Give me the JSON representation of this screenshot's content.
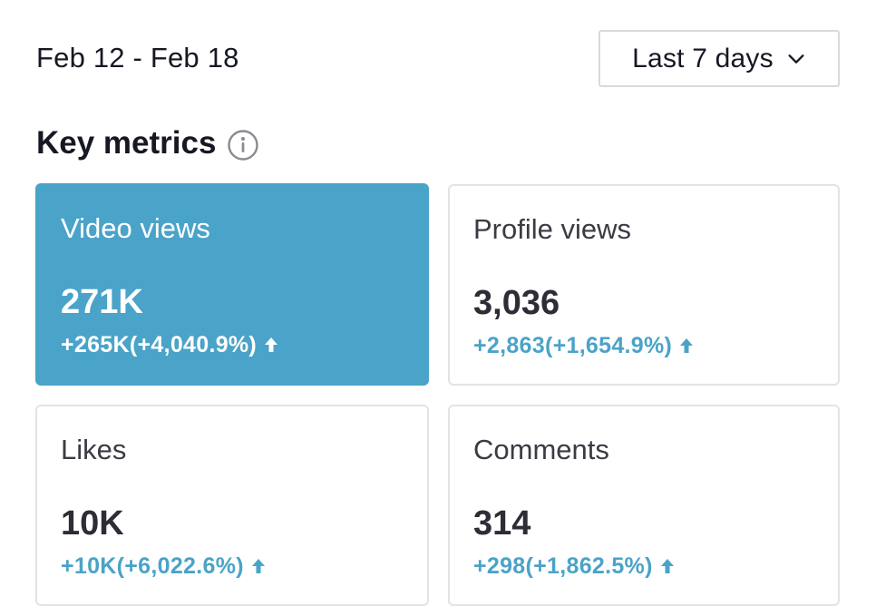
{
  "header": {
    "date_range": "Feb 12 - Feb 18",
    "range_select": {
      "value": "Last 7 days",
      "icon": "chevron-down-icon"
    }
  },
  "section": {
    "title": "Key metrics",
    "info_icon": "info-icon"
  },
  "metrics": [
    {
      "label": "Video views",
      "value": "271K",
      "change": "+265K(+4,040.9%)",
      "trend": "up",
      "selected": true
    },
    {
      "label": "Profile views",
      "value": "3,036",
      "change": "+2,863(+1,654.9%)",
      "trend": "up",
      "selected": false
    },
    {
      "label": "Likes",
      "value": "10K",
      "change": "+10K(+6,022.6%)",
      "trend": "up",
      "selected": false
    },
    {
      "label": "Comments",
      "value": "314",
      "change": "+298(+1,862.5%)",
      "trend": "up",
      "selected": false
    }
  ],
  "colors": {
    "accent": "#4aa3c8",
    "text": "#161823",
    "border": "#e3e3e6",
    "active_text": "#ffffff"
  }
}
